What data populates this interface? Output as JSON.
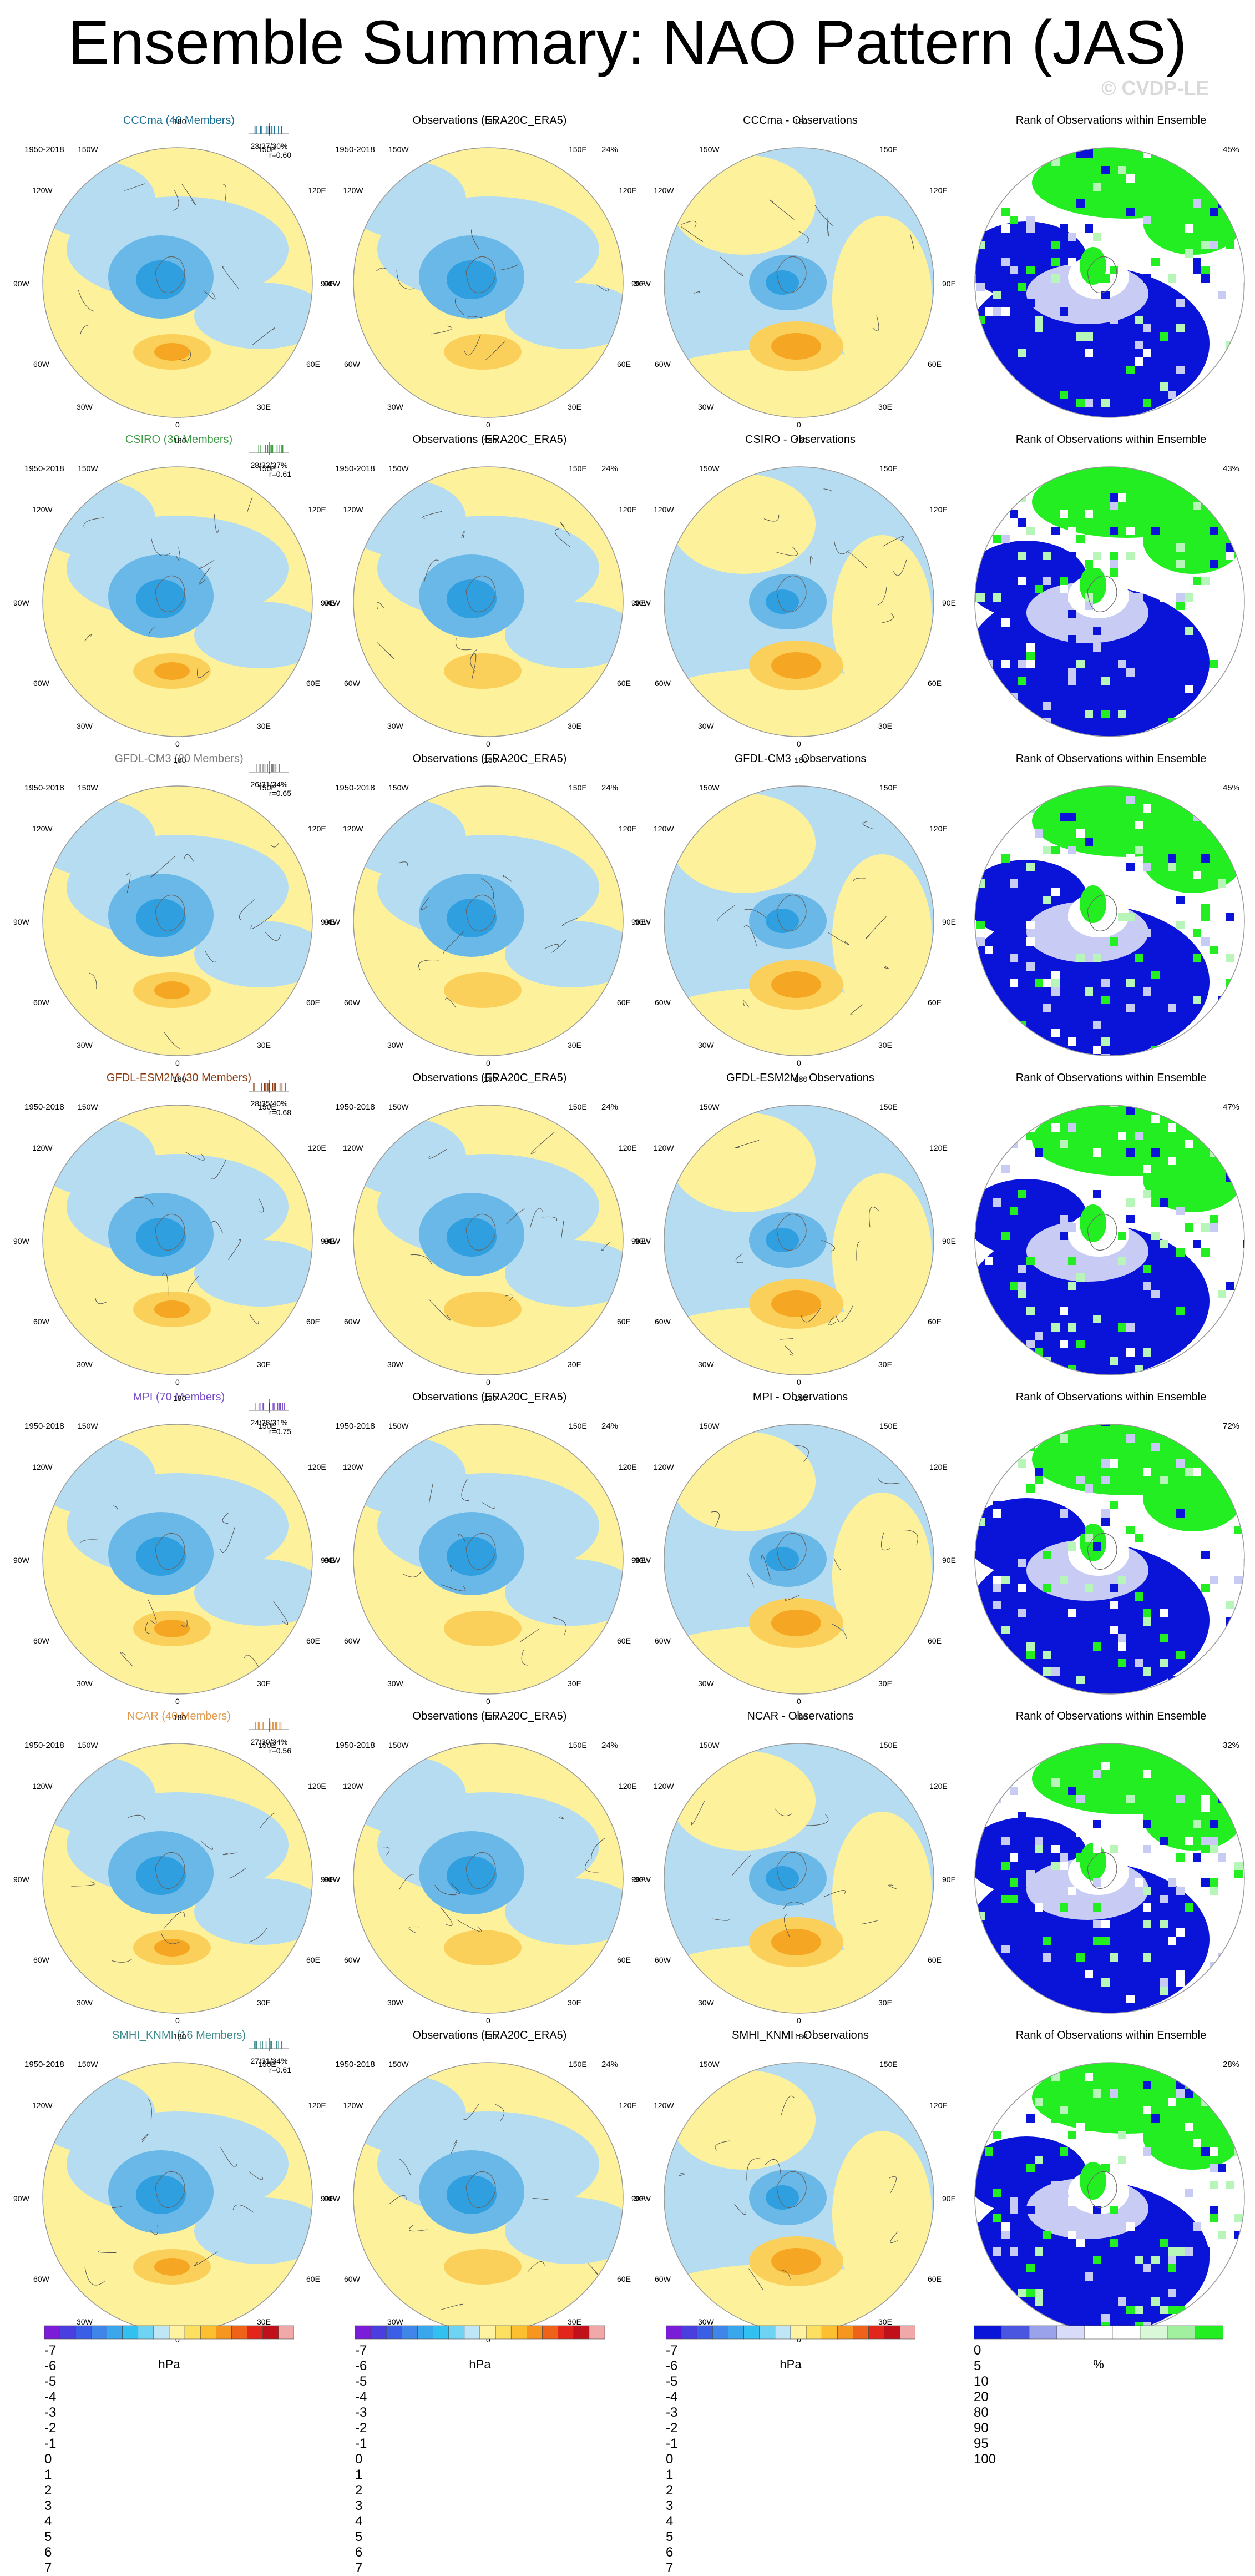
{
  "title": "Ensemble Summary: NAO Pattern (JAS)",
  "watermark": "© CVDP-LE",
  "rows": [
    {
      "model": "CCCma (40 Members)",
      "model_color": "#1a6f98",
      "stats_line1": "23/27/30%",
      "stats_line2": "r=0.60",
      "obs_title": "Observations (ERA20C_ERA5)",
      "diff_title": "CCCma - Observations",
      "rank_title": "Rank of Observations within Ensemble",
      "period": "1950-2018",
      "obs_period": "1950-2018",
      "obs_pct": "24%",
      "rank_pct": "45%"
    },
    {
      "model": "CSIRO (30 Members)",
      "model_color": "#3e9a44",
      "stats_line1": "28/32/37%",
      "stats_line2": "r=0.61",
      "obs_title": "Observations (ERA20C_ERA5)",
      "diff_title": "CSIRO - Observations",
      "rank_title": "Rank of Observations within Ensemble",
      "period": "1950-2018",
      "obs_period": "1950-2018",
      "obs_pct": "24%",
      "rank_pct": "43%"
    },
    {
      "model": "GFDL-CM3 (20 Members)",
      "model_color": "#7a7a7a",
      "stats_line1": "26/31/34%",
      "stats_line2": "r=0.65",
      "obs_title": "Observations (ERA20C_ERA5)",
      "diff_title": "GFDL-CM3 - Observations",
      "rank_title": "Rank of Observations within Ensemble",
      "period": "1950-2018",
      "obs_period": "1950-2018",
      "obs_pct": "24%",
      "rank_pct": "45%"
    },
    {
      "model": "GFDL-ESM2M (30 Members)",
      "model_color": "#8b3a0e",
      "stats_line1": "28/35/40%",
      "stats_line2": "r=0.68",
      "obs_title": "Observations (ERA20C_ERA5)",
      "diff_title": "GFDL-ESM2M - Observations",
      "rank_title": "Rank of Observations within Ensemble",
      "period": "1950-2018",
      "obs_period": "1950-2018",
      "obs_pct": "24%",
      "rank_pct": "47%"
    },
    {
      "model": "MPI (70 Members)",
      "model_color": "#7b4fc9",
      "stats_line1": "24/28/31%",
      "stats_line2": "r=0.75",
      "obs_title": "Observations (ERA20C_ERA5)",
      "diff_title": "MPI - Observations",
      "rank_title": "Rank of Observations within Ensemble",
      "period": "1950-2018",
      "obs_period": "1950-2018",
      "obs_pct": "24%",
      "rank_pct": "72%"
    },
    {
      "model": "NCAR (40 Members)",
      "model_color": "#e09a4f",
      "stats_line1": "27/30/34%",
      "stats_line2": "r=0.56",
      "obs_title": "Observations (ERA20C_ERA5)",
      "diff_title": "NCAR - Observations",
      "rank_title": "Rank of Observations within Ensemble",
      "period": "1950-2018",
      "obs_period": "1950-2018",
      "obs_pct": "24%",
      "rank_pct": "32%"
    },
    {
      "model": "SMHI_KNMI (16 Members)",
      "model_color": "#3c8a8c",
      "stats_line1": "27/31/34%",
      "stats_line2": "r=0.61",
      "obs_title": "Observations (ERA20C_ERA5)",
      "diff_title": "SMHI_KNMI - Observations",
      "rank_title": "Rank of Observations within Ensemble",
      "period": "1950-2018",
      "obs_period": "1950-2018",
      "obs_pct": "24%",
      "rank_pct": "28%"
    }
  ],
  "map_labels": {
    "top": "180",
    "bottom": "0",
    "upper_left": "150W",
    "upper_right": "150E",
    "mid_upper_left": "120W",
    "mid_upper_right": "120E",
    "left": "90W",
    "right": "90E",
    "mid_lower_left": "60W",
    "mid_lower_right": "60E",
    "lower_left": "30W",
    "lower_right": "30E"
  },
  "colors": {
    "pos_light": "#fdf29b",
    "neg_light": "#b5dcf1",
    "neg_mid": "#6ab8e8",
    "neg_dark": "#2f9fe0",
    "pos_mid": "#fbd05a",
    "pos_dark": "#f5a623",
    "rank_blue": "#0a14d8",
    "rank_lightblue": "#c8ccf5",
    "rank_green": "#22ee22",
    "rank_lightgreen": "#b8f5b8"
  },
  "colorbar_hpa": {
    "labels": [
      "-7",
      "-6",
      "-5",
      "-4",
      "-3",
      "-2",
      "-1",
      "0",
      "1",
      "2",
      "3",
      "4",
      "5",
      "6",
      "7"
    ],
    "unit": "hPa",
    "colors": [
      "#7a1cd8",
      "#4b3ee0",
      "#3a5fe6",
      "#3f86e8",
      "#3aa7ec",
      "#32c0f0",
      "#6fd4f4",
      "#bfe6f7",
      "#fff2a0",
      "#fde060",
      "#fbbf30",
      "#f7961e",
      "#ef621a",
      "#e2261c",
      "#c0101a",
      "#f0a8a8"
    ]
  },
  "colorbar_rank": {
    "labels": [
      "0",
      "5",
      "10",
      "20",
      "80",
      "90",
      "95",
      "100"
    ],
    "unit": "%",
    "colors": [
      "#0a14d8",
      "#4a55e0",
      "#9aa2ec",
      "#d8dcf8",
      "#ffffff",
      "#ffffff",
      "#d8f8d8",
      "#a0f0a0",
      "#22ee22"
    ]
  }
}
